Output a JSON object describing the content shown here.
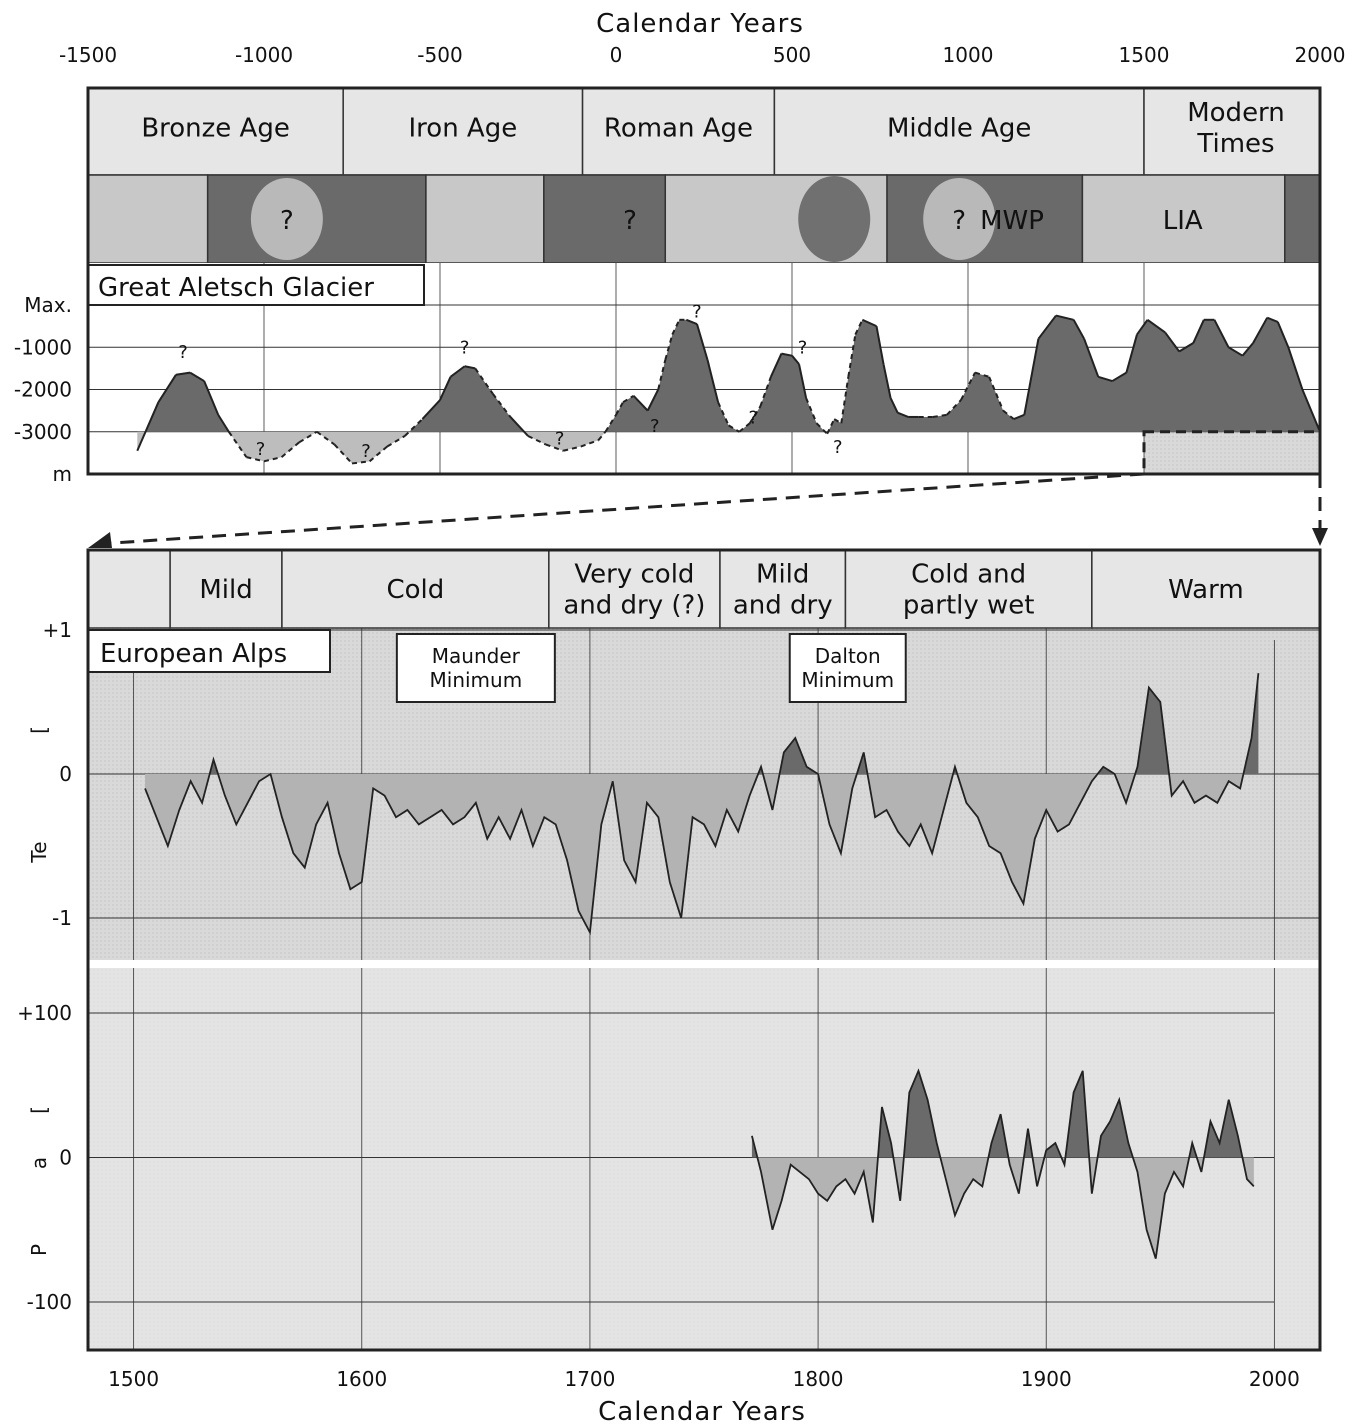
{
  "top_axis": {
    "title": "Calendar Years",
    "ticks": [
      -1500,
      -1000,
      -500,
      0,
      500,
      1000,
      1500,
      2000
    ]
  },
  "bottom_axis": {
    "title": "Calendar Years",
    "ticks": [
      1500,
      1600,
      1700,
      1800,
      1900,
      2000
    ]
  },
  "colors": {
    "bar_fill": "#e6e6e6",
    "dark_fill": "#6a6a6a",
    "light_fill": "#bdbdbd",
    "band_mid": "#9a9a9a",
    "band_light": "#c8c8c8",
    "panel_bg": "#dcdcdc",
    "line": "#222222"
  },
  "chart_data": [
    {
      "type": "area",
      "name": "glacier",
      "periods": [
        {
          "label": "Bronze Age",
          "start": -1500,
          "end": -775
        },
        {
          "label": "Iron Age",
          "start": -775,
          "end": -95
        },
        {
          "label": "Roman Age",
          "start": -95,
          "end": 450
        },
        {
          "label": "Middle Age",
          "start": 450,
          "end": 1500
        },
        {
          "label": "Modern Times",
          "start": 1500,
          "end": 2000
        }
      ],
      "climate_bands": [
        {
          "start": -1500,
          "end": -1160,
          "tone": "light"
        },
        {
          "start": -1160,
          "end": -540,
          "tone": "dark"
        },
        {
          "start": -540,
          "end": -205,
          "tone": "light"
        },
        {
          "start": -205,
          "end": 140,
          "tone": "dark"
        },
        {
          "start": 140,
          "end": 770,
          "tone": "light"
        },
        {
          "start": 770,
          "end": 1325,
          "tone": "dark"
        },
        {
          "start": 1325,
          "end": 1900,
          "tone": "light"
        },
        {
          "start": 1900,
          "end": 2000,
          "tone": "dark"
        }
      ],
      "climate_marks": [
        {
          "text": "?",
          "x": -935,
          "ellipse": "light"
        },
        {
          "text": "?",
          "x": 40,
          "ellipse": ""
        },
        {
          "text": "",
          "x": 620,
          "ellipse": "dark"
        },
        {
          "text": "?",
          "x": 975,
          "ellipse": "light"
        },
        {
          "text": "MWP",
          "x": 1125,
          "ellipse": ""
        },
        {
          "text": "LIA",
          "x": 1610,
          "ellipse": ""
        }
      ],
      "label": "Great Aletsch Glacier",
      "yticks": [
        {
          "v": 0,
          "label": "Max."
        },
        {
          "v": -1000,
          "label": "-1000"
        },
        {
          "v": -2000,
          "label": "-2000"
        },
        {
          "v": -3000,
          "label": "-3000"
        },
        {
          "v": -4000,
          "label": "m"
        }
      ],
      "ylim": [
        -4000,
        0
      ],
      "xlim": [
        -1500,
        2000
      ],
      "baseline": -3000,
      "x": [
        -1360,
        -1300,
        -1250,
        -1210,
        -1170,
        -1130,
        -1100,
        -1050,
        -1000,
        -950,
        -900,
        -850,
        -800,
        -750,
        -700,
        -650,
        -600,
        -550,
        -500,
        -470,
        -430,
        -400,
        -350,
        -300,
        -250,
        -200,
        -150,
        -100,
        -50,
        -30,
        0,
        20,
        50,
        90,
        120,
        140,
        160,
        180,
        200,
        230,
        260,
        290,
        320,
        350,
        380,
        410,
        440,
        470,
        500,
        520,
        540,
        570,
        600,
        620,
        640,
        660,
        680,
        700,
        740,
        760,
        780,
        800,
        830,
        860,
        900,
        940,
        980,
        1020,
        1060,
        1100,
        1130,
        1160,
        1200,
        1250,
        1300,
        1330,
        1370,
        1410,
        1450,
        1480,
        1510,
        1560,
        1600,
        1640,
        1670,
        1700,
        1740,
        1780,
        1810,
        1850,
        1880,
        1910,
        1950,
        2000
      ],
      "y": [
        -3450,
        -2300,
        -1650,
        -1600,
        -1800,
        -2600,
        -3000,
        -3600,
        -3700,
        -3600,
        -3250,
        -3000,
        -3300,
        -3750,
        -3700,
        -3350,
        -3100,
        -2700,
        -2250,
        -1700,
        -1450,
        -1500,
        -2100,
        -2650,
        -3100,
        -3300,
        -3450,
        -3350,
        -3200,
        -3000,
        -2600,
        -2300,
        -2150,
        -2500,
        -2000,
        -1300,
        -700,
        -350,
        -350,
        -450,
        -1300,
        -2300,
        -2850,
        -3000,
        -2800,
        -2400,
        -1700,
        -1150,
        -1200,
        -1400,
        -2200,
        -2800,
        -3050,
        -2700,
        -2800,
        -1700,
        -700,
        -350,
        -500,
        -1400,
        -2200,
        -2550,
        -2650,
        -2650,
        -2650,
        -2600,
        -2250,
        -1600,
        -1700,
        -2500,
        -2700,
        -2600,
        -800,
        -250,
        -350,
        -800,
        -1700,
        -1800,
        -1600,
        -700,
        -350,
        -650,
        -1100,
        -900,
        -350,
        -350,
        -1000,
        -1200,
        -900,
        -300,
        -400,
        -1000,
        -2000,
        -3000
      ],
      "dashed_ranges": [
        [
          -1100,
          -775
        ],
        [
          -730,
          -550
        ],
        [
          -400,
          -310
        ],
        [
          -250,
          50
        ],
        [
          120,
          200
        ],
        [
          280,
          440
        ],
        [
          540,
          710
        ],
        [
          880,
          1120
        ]
      ],
      "question_marks": [
        [
          -1230,
          -1250
        ],
        [
          -1010,
          -3550
        ],
        [
          -710,
          -3600
        ],
        [
          -430,
          -1150
        ],
        [
          -160,
          -3300
        ],
        [
          110,
          -3000
        ],
        [
          230,
          -300
        ],
        [
          390,
          -2800
        ],
        [
          530,
          -1150
        ],
        [
          630,
          -3500
        ]
      ],
      "zoom_start": 1500
    },
    {
      "type": "area",
      "name": "temperature",
      "periods": [
        {
          "label": "",
          "start": 1480,
          "end": 1516
        },
        {
          "label": "Mild",
          "start": 1516,
          "end": 1565
        },
        {
          "label": "Cold",
          "start": 1565,
          "end": 1682
        },
        {
          "label": "Very cold\nand dry (?)",
          "start": 1682,
          "end": 1757
        },
        {
          "label": "Mild\nand dry",
          "start": 1757,
          "end": 1812
        },
        {
          "label": "Cold and\npartly wet",
          "start": 1812,
          "end": 1920
        },
        {
          "label": "Warm",
          "start": 1920,
          "end": 2020
        }
      ],
      "label": "European Alps",
      "annotations": [
        {
          "text": "Maunder\nMinimum",
          "x": 1650
        },
        {
          "text": "Dalton\nMinimum",
          "x": 1813
        }
      ],
      "ylabel": "Te",
      "ylabel_bracket": "[",
      "yticks": [
        {
          "v": 1,
          "label": "+1"
        },
        {
          "v": 0,
          "label": "0"
        },
        {
          "v": -1,
          "label": "-1"
        }
      ],
      "ylim": [
        -1.35,
        1.0
      ],
      "xlim": [
        1480,
        2020
      ],
      "x": [
        1505,
        1510,
        1515,
        1520,
        1525,
        1530,
        1535,
        1540,
        1545,
        1550,
        1555,
        1560,
        1565,
        1570,
        1575,
        1580,
        1585,
        1590,
        1595,
        1600,
        1605,
        1610,
        1615,
        1620,
        1625,
        1630,
        1635,
        1640,
        1645,
        1650,
        1655,
        1660,
        1665,
        1670,
        1675,
        1680,
        1685,
        1690,
        1695,
        1700,
        1705,
        1710,
        1715,
        1720,
        1725,
        1730,
        1735,
        1740,
        1745,
        1750,
        1755,
        1760,
        1765,
        1770,
        1775,
        1780,
        1785,
        1790,
        1795,
        1800,
        1805,
        1810,
        1815,
        1820,
        1825,
        1830,
        1835,
        1840,
        1845,
        1850,
        1855,
        1860,
        1865,
        1870,
        1875,
        1880,
        1885,
        1890,
        1895,
        1900,
        1905,
        1910,
        1915,
        1920,
        1925,
        1930,
        1935,
        1940,
        1945,
        1950,
        1955,
        1960,
        1965,
        1970,
        1975,
        1980,
        1985,
        1990,
        1993
      ],
      "y": [
        -0.1,
        -0.3,
        -0.5,
        -0.25,
        -0.05,
        -0.2,
        0.1,
        -0.15,
        -0.35,
        -0.2,
        -0.05,
        0.0,
        -0.3,
        -0.55,
        -0.65,
        -0.35,
        -0.2,
        -0.55,
        -0.8,
        -0.75,
        -0.1,
        -0.15,
        -0.3,
        -0.25,
        -0.35,
        -0.3,
        -0.25,
        -0.35,
        -0.3,
        -0.2,
        -0.45,
        -0.3,
        -0.45,
        -0.25,
        -0.5,
        -0.3,
        -0.35,
        -0.6,
        -0.95,
        -1.1,
        -0.35,
        -0.05,
        -0.6,
        -0.75,
        -0.2,
        -0.3,
        -0.75,
        -1.0,
        -0.3,
        -0.35,
        -0.5,
        -0.25,
        -0.4,
        -0.15,
        0.05,
        -0.25,
        0.15,
        0.25,
        0.05,
        0.0,
        -0.35,
        -0.55,
        -0.1,
        0.15,
        -0.3,
        -0.25,
        -0.4,
        -0.5,
        -0.35,
        -0.55,
        -0.25,
        0.05,
        -0.2,
        -0.3,
        -0.5,
        -0.55,
        -0.75,
        -0.9,
        -0.45,
        -0.25,
        -0.4,
        -0.35,
        -0.2,
        -0.05,
        0.05,
        0.0,
        -0.2,
        0.05,
        0.6,
        0.5,
        -0.15,
        -0.05,
        -0.2,
        -0.15,
        -0.2,
        -0.05,
        -0.1,
        0.25,
        0.7
      ]
    },
    {
      "type": "area",
      "name": "precipitation",
      "ylabel_letters": [
        "P",
        "a",
        "["
      ],
      "yticks": [
        {
          "v": 100,
          "label": "+100"
        },
        {
          "v": 0,
          "label": "0"
        },
        {
          "v": -100,
          "label": "-100"
        }
      ],
      "ylim": [
        -130,
        140
      ],
      "xlim": [
        1480,
        2020
      ],
      "x": [
        1771,
        1775,
        1780,
        1784,
        1788,
        1792,
        1796,
        1800,
        1804,
        1808,
        1812,
        1816,
        1820,
        1824,
        1828,
        1832,
        1836,
        1840,
        1844,
        1848,
        1852,
        1856,
        1860,
        1864,
        1868,
        1872,
        1876,
        1880,
        1884,
        1888,
        1892,
        1896,
        1900,
        1904,
        1908,
        1912,
        1916,
        1920,
        1924,
        1928,
        1932,
        1936,
        1940,
        1944,
        1948,
        1952,
        1956,
        1960,
        1964,
        1968,
        1972,
        1976,
        1980,
        1984,
        1988,
        1991
      ],
      "y": [
        15,
        -10,
        -50,
        -30,
        -5,
        -10,
        -15,
        -25,
        -30,
        -20,
        -15,
        -25,
        -10,
        -45,
        35,
        10,
        -30,
        45,
        60,
        40,
        10,
        -15,
        -40,
        -25,
        -15,
        -20,
        10,
        30,
        -5,
        -25,
        20,
        -20,
        5,
        10,
        -5,
        45,
        60,
        -25,
        15,
        25,
        40,
        10,
        -10,
        -50,
        -70,
        -25,
        -10,
        -20,
        10,
        -10,
        25,
        10,
        40,
        15,
        -15,
        -20
      ]
    }
  ]
}
